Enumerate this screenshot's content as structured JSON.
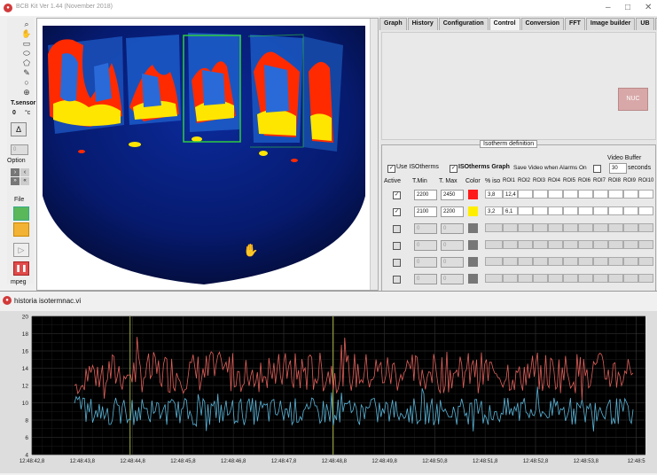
{
  "window": {
    "title": "BCB Kit Ver 1.44 (November 2018)",
    "minimize_glyph": "–",
    "maximize_glyph": "□",
    "close_glyph": "✕"
  },
  "toolbar": {
    "tool_icons": [
      "zoom-icon",
      "hand-icon",
      "rectangle-icon",
      "ellipse-icon",
      "polygon-icon",
      "freehand-icon",
      "circle-icon",
      "crosshair-icon"
    ],
    "tsensor_label": "T.sensor",
    "tsensor_value": "0",
    "tsensor_unit": "°c",
    "delta_glyph": "Δ",
    "spin_value": "0",
    "option_label": "Option",
    "file_label": "File",
    "mpeg_label": "mpeg"
  },
  "tabs": [
    "Graph",
    "History",
    "Configuration",
    "Control",
    "Conversion",
    "FFT",
    "Image builder",
    "UB",
    "?"
  ],
  "active_tab": "Control",
  "control": {
    "nuc_label": "NUC"
  },
  "isotherm": {
    "title": "Isotherm definition",
    "use_isotherms_label": "Use ISOtherms",
    "isotherms_graph_label": "ISOtherms Graph",
    "save_video_label": "Save Video when Alarms On",
    "video_buffer_label": "Video Buffer",
    "video_buffer_value": "30",
    "video_buffer_unit": "seconds",
    "headers": [
      "Active",
      "T.Min",
      "T. Max",
      "Color",
      "% iso",
      "ROI1",
      "ROI2",
      "ROI3",
      "ROI4",
      "ROI5",
      "ROI6",
      "ROI7",
      "ROI8",
      "ROI9",
      "ROI10"
    ],
    "rows": [
      {
        "active": true,
        "tmin": "2200",
        "tmax": "2450",
        "color": "#ff1a1a",
        "iso": "3,8",
        "roi1": "12,4",
        "enabled": true
      },
      {
        "active": true,
        "tmin": "2100",
        "tmax": "2200",
        "color": "#ffee00",
        "iso": "3,2",
        "roi1": "6,1",
        "enabled": true
      },
      {
        "active": false,
        "tmin": "0",
        "tmax": "0",
        "color": "#777777",
        "iso": "",
        "roi1": "",
        "enabled": false
      },
      {
        "active": false,
        "tmin": "0",
        "tmax": "0",
        "color": "#777777",
        "iso": "",
        "roi1": "",
        "enabled": false
      },
      {
        "active": false,
        "tmin": "0",
        "tmax": "0",
        "color": "#777777",
        "iso": "",
        "roi1": "",
        "enabled": false
      },
      {
        "active": false,
        "tmin": "0",
        "tmax": "0",
        "color": "#777777",
        "iso": "",
        "roi1": "",
        "enabled": false
      }
    ]
  },
  "graph_window": {
    "title": "historia isotermnac.vi"
  },
  "chart_data": {
    "type": "line",
    "title": "",
    "xlabel": "",
    "ylabel": "",
    "ylim": [
      4,
      20
    ],
    "y_ticks": [
      "4",
      "6",
      "8",
      "10",
      "12",
      "14",
      "16",
      "18",
      "20"
    ],
    "x_ticks": [
      "12:48:42,8",
      "12:48:43,8",
      "12:48:44,8",
      "12:48:45,8",
      "12:48:46,8",
      "12:48:47,8",
      "12:48:48,8",
      "12:48:49,8",
      "12:48:50,8",
      "12:48:51,8",
      "12:48:52,8",
      "12:48:53,8",
      "12:48:5"
    ],
    "grid": true,
    "background": "#000000",
    "series": [
      {
        "color": "#e0605a",
        "mean": 13.5,
        "spread": 2.4,
        "start": 12.0
      },
      {
        "color": "#5ab4d8",
        "mean": 9.0,
        "spread": 1.6,
        "start": 10.0
      }
    ],
    "cursor_color": "#c8d84a"
  },
  "colors": {
    "camera_bg": "#061a6e",
    "hot_red": "#ff2a00",
    "hot_yellow": "#ffe600",
    "roi_green": "#2ecc40"
  }
}
